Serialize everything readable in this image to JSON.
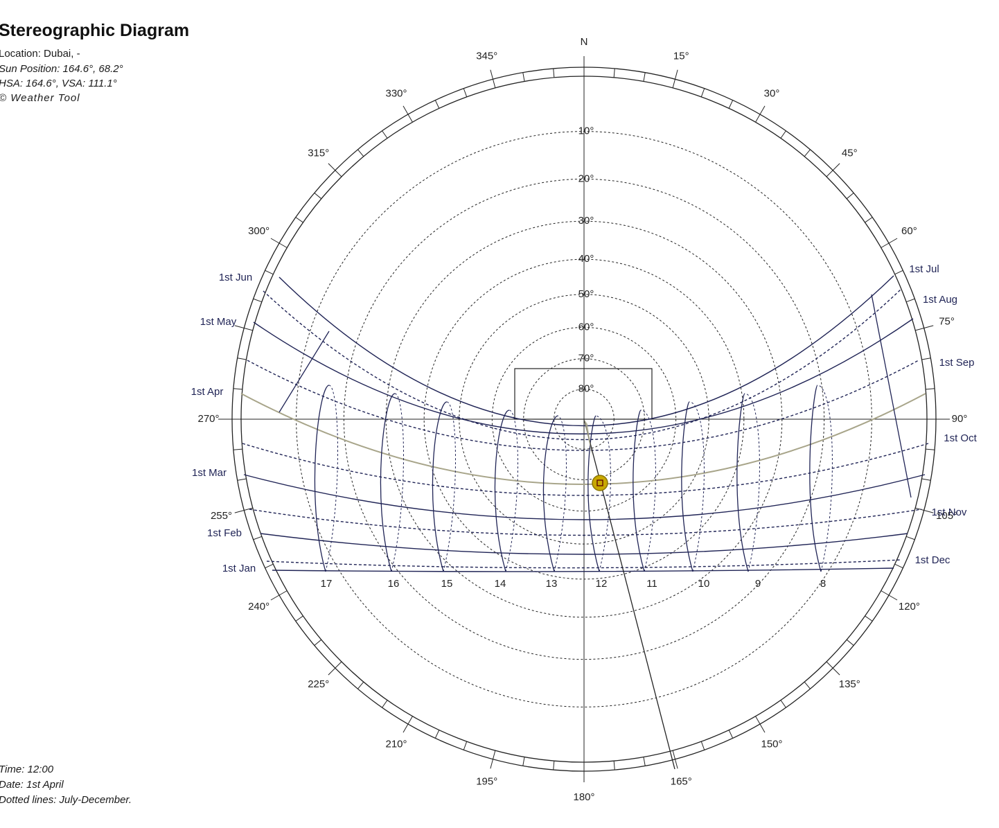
{
  "header": {
    "title": "Stereographic Diagram",
    "location": "Location: Dubai, -",
    "sun_position": "Sun Position: 164.6°, 68.2°",
    "shadow_angles": "HSA: 164.6°, VSA: 111.1°",
    "copyright": "© Weather Tool"
  },
  "footer": {
    "time": "Time: 12:00",
    "date": "Date: 1st April",
    "note": "Dotted lines: July-December."
  },
  "azimuth_labels": [
    {
      "deg": 0,
      "text": "N"
    },
    {
      "deg": 15,
      "text": "15°"
    },
    {
      "deg": 30,
      "text": "30°"
    },
    {
      "deg": 45,
      "text": "45°"
    },
    {
      "deg": 60,
      "text": "60°"
    },
    {
      "deg": 75,
      "text": "75°"
    },
    {
      "deg": 90,
      "text": "90°"
    },
    {
      "deg": 105,
      "text": "105°"
    },
    {
      "deg": 120,
      "text": "120°"
    },
    {
      "deg": 135,
      "text": "135°"
    },
    {
      "deg": 150,
      "text": "150°"
    },
    {
      "deg": 165,
      "text": "165°"
    },
    {
      "deg": 180,
      "text": "180°"
    },
    {
      "deg": 195,
      "text": "195°"
    },
    {
      "deg": 210,
      "text": "210°"
    },
    {
      "deg": 225,
      "text": "225°"
    },
    {
      "deg": 240,
      "text": "240°"
    },
    {
      "deg": 255,
      "text": "255°"
    },
    {
      "deg": 270,
      "text": "270°"
    },
    {
      "deg": 300,
      "text": "300°"
    },
    {
      "deg": 315,
      "text": "315°"
    },
    {
      "deg": 330,
      "text": "330°"
    },
    {
      "deg": 345,
      "text": "345°"
    }
  ],
  "altitude_labels": [
    {
      "alt": 10,
      "text": "10°"
    },
    {
      "alt": 20,
      "text": "20°"
    },
    {
      "alt": 30,
      "text": "30°"
    },
    {
      "alt": 40,
      "text": "40°"
    },
    {
      "alt": 50,
      "text": "50°"
    },
    {
      "alt": 60,
      "text": "60°"
    },
    {
      "alt": 70,
      "text": "70°"
    },
    {
      "alt": 80,
      "text": "80°"
    }
  ],
  "date_labels_left": [
    {
      "text": "1st Jun"
    },
    {
      "text": "1st May"
    },
    {
      "text": "1st Apr"
    },
    {
      "text": "1st Mar"
    },
    {
      "text": "1st Feb"
    },
    {
      "text": "1st Jan"
    }
  ],
  "date_labels_right": [
    {
      "text": "1st Jul"
    },
    {
      "text": "1st Aug"
    },
    {
      "text": "1st Sep"
    },
    {
      "text": "1st Oct"
    },
    {
      "text": "1st Nov"
    },
    {
      "text": "1st Dec"
    }
  ],
  "hour_labels": [
    {
      "text": "17"
    },
    {
      "text": "16"
    },
    {
      "text": "15"
    },
    {
      "text": "14"
    },
    {
      "text": "13"
    },
    {
      "text": "12"
    },
    {
      "text": "11"
    },
    {
      "text": "10"
    },
    {
      "text": "9"
    },
    {
      "text": "8"
    }
  ],
  "sun": {
    "azimuth": 164.6,
    "altitude": 68.2,
    "color": "#c8a800"
  },
  "colors": {
    "path": "#1f2355",
    "current_day": "#a8a58a",
    "grid": "#222222"
  }
}
